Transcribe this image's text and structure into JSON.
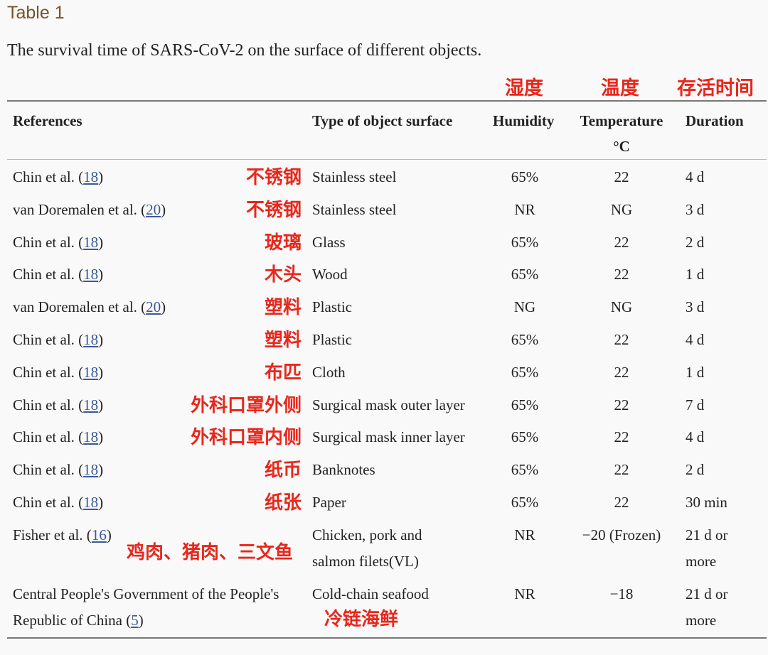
{
  "caption": {
    "label": "Table 1",
    "title": "The survival time of SARS-CoV-2 on the surface of different objects."
  },
  "annotations_header": {
    "humidity": "湿度",
    "temperature": "温度",
    "duration": "存活时间"
  },
  "columns": {
    "references": "References",
    "surface": "Type of object surface",
    "humidity": "Humidity",
    "temperature": "Temperature",
    "temperature_unit": "°C",
    "duration": "Duration"
  },
  "rows": [
    {
      "ref_pre": "Chin et al. (",
      "ref_num": "18",
      "ref_post": ")",
      "note": "不锈钢",
      "surface": "Stainless steel",
      "humidity": "65%",
      "temperature": "22",
      "duration": "4 d"
    },
    {
      "ref_pre": "van Doremalen et al. (",
      "ref_num": "20",
      "ref_post": ")",
      "note": "不锈钢",
      "surface": "Stainless steel",
      "humidity": "NR",
      "temperature": "NG",
      "duration": "3 d"
    },
    {
      "ref_pre": "Chin et al. (",
      "ref_num": "18",
      "ref_post": ")",
      "note": "玻璃",
      "surface": "Glass",
      "humidity": "65%",
      "temperature": "22",
      "duration": "2 d"
    },
    {
      "ref_pre": "Chin et al. (",
      "ref_num": "18",
      "ref_post": ")",
      "note": "木头",
      "surface": "Wood",
      "humidity": "65%",
      "temperature": "22",
      "duration": "1 d"
    },
    {
      "ref_pre": "van Doremalen et al. (",
      "ref_num": "20",
      "ref_post": ")",
      "note": "塑料",
      "surface": "Plastic",
      "humidity": "NG",
      "temperature": "NG",
      "duration": "3 d"
    },
    {
      "ref_pre": "Chin et al. (",
      "ref_num": "18",
      "ref_post": ")",
      "note": "塑料",
      "surface": "Plastic",
      "humidity": "65%",
      "temperature": "22",
      "duration": "4 d"
    },
    {
      "ref_pre": "Chin et al. (",
      "ref_num": "18",
      "ref_post": ")",
      "note": "布匹",
      "surface": "Cloth",
      "humidity": "65%",
      "temperature": "22",
      "duration": "1 d"
    },
    {
      "ref_pre": "Chin et al. (",
      "ref_num": "18",
      "ref_post": ")",
      "note": "外科口罩外侧",
      "surface": "Surgical mask outer layer",
      "humidity": "65%",
      "temperature": "22",
      "duration": "7 d"
    },
    {
      "ref_pre": "Chin et al. (",
      "ref_num": "18",
      "ref_post": ")",
      "note": "外科口罩内侧",
      "surface": "Surgical mask inner layer",
      "humidity": "65%",
      "temperature": "22",
      "duration": "4 d"
    },
    {
      "ref_pre": "Chin et al. (",
      "ref_num": "18",
      "ref_post": ")",
      "note": "纸币",
      "surface": "Banknotes",
      "humidity": "65%",
      "temperature": "22",
      "duration": "2 d"
    },
    {
      "ref_pre": "Chin et al. (",
      "ref_num": "18",
      "ref_post": ")",
      "note": "纸张",
      "surface": "Paper",
      "humidity": "65%",
      "temperature": "22",
      "duration": "30 min"
    }
  ],
  "row_fisher": {
    "ref_pre": "Fisher et al. (",
    "ref_num": "16",
    "ref_post": ")",
    "note": "鸡肉、猪肉、三文鱼",
    "surface_line1": "Chicken, pork and",
    "surface_line2": "salmon filets(VL)",
    "humidity": "NR",
    "temperature": "−20 (Frozen)",
    "duration_line1": "21 d or",
    "duration_line2": "more"
  },
  "row_china": {
    "ref_line1": "Central People's Government of the People's",
    "ref_line2_pre": "Republic of China (",
    "ref_num": "5",
    "ref_post": ")",
    "surface": "Cold-chain seafood",
    "note": "冷链海鲜",
    "humidity": "NR",
    "temperature": "−18",
    "duration_line1": "21 d or",
    "duration_line2": "more"
  }
}
